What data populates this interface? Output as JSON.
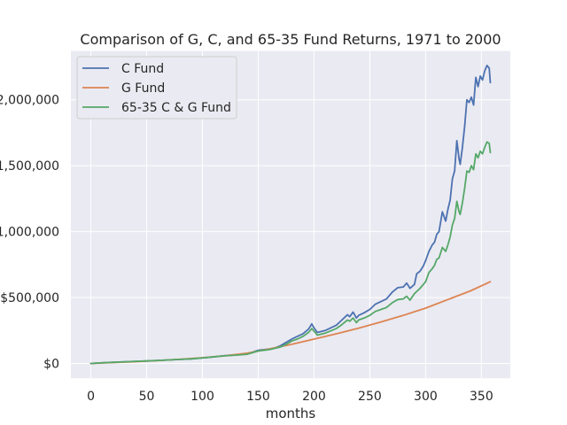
{
  "chart_data": {
    "type": "line",
    "title": "Comparison of G, C, and 65-35 Fund Returns, 1971 to 2000",
    "xlabel": "months",
    "ylabel": "",
    "xlim": [
      -17.9,
      375.9
    ],
    "ylim": [
      -112000,
      2370000
    ],
    "x_ticks": [
      0,
      50,
      100,
      150,
      200,
      250,
      300,
      350
    ],
    "x_tick_labels": [
      "0",
      "50",
      "100",
      "150",
      "200",
      "250",
      "300",
      "350"
    ],
    "y_ticks": [
      0,
      500000,
      1000000,
      1500000,
      2000000
    ],
    "y_tick_labels": [
      "$0",
      "$500,000",
      "1,000,000",
      "1,500,000",
      "2,000,000"
    ],
    "grid": true,
    "legend_position": "upper-left",
    "series": [
      {
        "name": "C Fund",
        "color": "#4c72b0",
        "points": [
          [
            0,
            0
          ],
          [
            10,
            5000
          ],
          [
            20,
            9000
          ],
          [
            30,
            13000
          ],
          [
            40,
            16000
          ],
          [
            50,
            19000
          ],
          [
            60,
            23000
          ],
          [
            70,
            27000
          ],
          [
            80,
            31000
          ],
          [
            90,
            35000
          ],
          [
            100,
            42000
          ],
          [
            110,
            50000
          ],
          [
            120,
            60000
          ],
          [
            130,
            65000
          ],
          [
            140,
            72000
          ],
          [
            150,
            100000
          ],
          [
            155,
            105000
          ],
          [
            160,
            110000
          ],
          [
            165,
            118000
          ],
          [
            170,
            135000
          ],
          [
            175,
            160000
          ],
          [
            180,
            185000
          ],
          [
            185,
            205000
          ],
          [
            190,
            225000
          ],
          [
            195,
            260000
          ],
          [
            198,
            300000
          ],
          [
            200,
            270000
          ],
          [
            203,
            235000
          ],
          [
            210,
            250000
          ],
          [
            220,
            290000
          ],
          [
            225,
            330000
          ],
          [
            230,
            370000
          ],
          [
            232,
            355000
          ],
          [
            235,
            390000
          ],
          [
            238,
            345000
          ],
          [
            240,
            365000
          ],
          [
            245,
            385000
          ],
          [
            250,
            410000
          ],
          [
            255,
            450000
          ],
          [
            260,
            470000
          ],
          [
            265,
            490000
          ],
          [
            270,
            540000
          ],
          [
            275,
            575000
          ],
          [
            280,
            580000
          ],
          [
            283,
            610000
          ],
          [
            286,
            570000
          ],
          [
            290,
            600000
          ],
          [
            292,
            680000
          ],
          [
            295,
            700000
          ],
          [
            298,
            740000
          ],
          [
            300,
            780000
          ],
          [
            303,
            850000
          ],
          [
            306,
            900000
          ],
          [
            308,
            920000
          ],
          [
            310,
            980000
          ],
          [
            312,
            1000000
          ],
          [
            315,
            1150000
          ],
          [
            318,
            1080000
          ],
          [
            320,
            1170000
          ],
          [
            322,
            1240000
          ],
          [
            324,
            1400000
          ],
          [
            326,
            1460000
          ],
          [
            328,
            1690000
          ],
          [
            330,
            1550000
          ],
          [
            331,
            1510000
          ],
          [
            333,
            1640000
          ],
          [
            335,
            1800000
          ],
          [
            337,
            2000000
          ],
          [
            339,
            1980000
          ],
          [
            341,
            2020000
          ],
          [
            343,
            1960000
          ],
          [
            345,
            2170000
          ],
          [
            347,
            2100000
          ],
          [
            349,
            2180000
          ],
          [
            351,
            2150000
          ],
          [
            353,
            2220000
          ],
          [
            355,
            2260000
          ],
          [
            357,
            2240000
          ],
          [
            358,
            2130000
          ]
        ]
      },
      {
        "name": "G Fund",
        "color": "#dd8452",
        "points": [
          [
            0,
            0
          ],
          [
            20,
            7000
          ],
          [
            40,
            14000
          ],
          [
            60,
            22000
          ],
          [
            80,
            32000
          ],
          [
            100,
            44000
          ],
          [
            120,
            58000
          ],
          [
            140,
            78000
          ],
          [
            160,
            110000
          ],
          [
            180,
            145000
          ],
          [
            200,
            185000
          ],
          [
            220,
            225000
          ],
          [
            240,
            268000
          ],
          [
            260,
            315000
          ],
          [
            280,
            365000
          ],
          [
            300,
            420000
          ],
          [
            320,
            485000
          ],
          [
            340,
            550000
          ],
          [
            358,
            620000
          ]
        ]
      },
      {
        "name": "65-35 C & G Fund",
        "color": "#55a868",
        "points": [
          [
            0,
            0
          ],
          [
            10,
            5000
          ],
          [
            20,
            9000
          ],
          [
            30,
            12000
          ],
          [
            40,
            16000
          ],
          [
            50,
            19000
          ],
          [
            60,
            23000
          ],
          [
            70,
            27000
          ],
          [
            80,
            31000
          ],
          [
            90,
            35000
          ],
          [
            100,
            42000
          ],
          [
            110,
            50000
          ],
          [
            120,
            58000
          ],
          [
            130,
            63000
          ],
          [
            140,
            70000
          ],
          [
            150,
            95000
          ],
          [
            155,
            100000
          ],
          [
            160,
            105000
          ],
          [
            170,
            125000
          ],
          [
            175,
            145000
          ],
          [
            180,
            170000
          ],
          [
            185,
            185000
          ],
          [
            190,
            205000
          ],
          [
            195,
            235000
          ],
          [
            198,
            265000
          ],
          [
            200,
            245000
          ],
          [
            203,
            215000
          ],
          [
            210,
            230000
          ],
          [
            220,
            265000
          ],
          [
            225,
            295000
          ],
          [
            230,
            330000
          ],
          [
            232,
            320000
          ],
          [
            235,
            345000
          ],
          [
            238,
            310000
          ],
          [
            240,
            330000
          ],
          [
            245,
            345000
          ],
          [
            250,
            365000
          ],
          [
            255,
            395000
          ],
          [
            260,
            410000
          ],
          [
            265,
            425000
          ],
          [
            270,
            460000
          ],
          [
            275,
            485000
          ],
          [
            280,
            490000
          ],
          [
            283,
            510000
          ],
          [
            286,
            480000
          ],
          [
            290,
            530000
          ],
          [
            295,
            570000
          ],
          [
            300,
            620000
          ],
          [
            303,
            690000
          ],
          [
            306,
            720000
          ],
          [
            308,
            745000
          ],
          [
            310,
            790000
          ],
          [
            312,
            800000
          ],
          [
            315,
            880000
          ],
          [
            318,
            850000
          ],
          [
            320,
            900000
          ],
          [
            322,
            960000
          ],
          [
            324,
            1050000
          ],
          [
            326,
            1100000
          ],
          [
            328,
            1230000
          ],
          [
            330,
            1150000
          ],
          [
            331,
            1130000
          ],
          [
            333,
            1220000
          ],
          [
            335,
            1330000
          ],
          [
            337,
            1460000
          ],
          [
            339,
            1450000
          ],
          [
            341,
            1500000
          ],
          [
            343,
            1470000
          ],
          [
            345,
            1590000
          ],
          [
            347,
            1560000
          ],
          [
            349,
            1610000
          ],
          [
            351,
            1590000
          ],
          [
            353,
            1640000
          ],
          [
            355,
            1680000
          ],
          [
            357,
            1670000
          ],
          [
            358,
            1600000
          ]
        ]
      }
    ]
  }
}
